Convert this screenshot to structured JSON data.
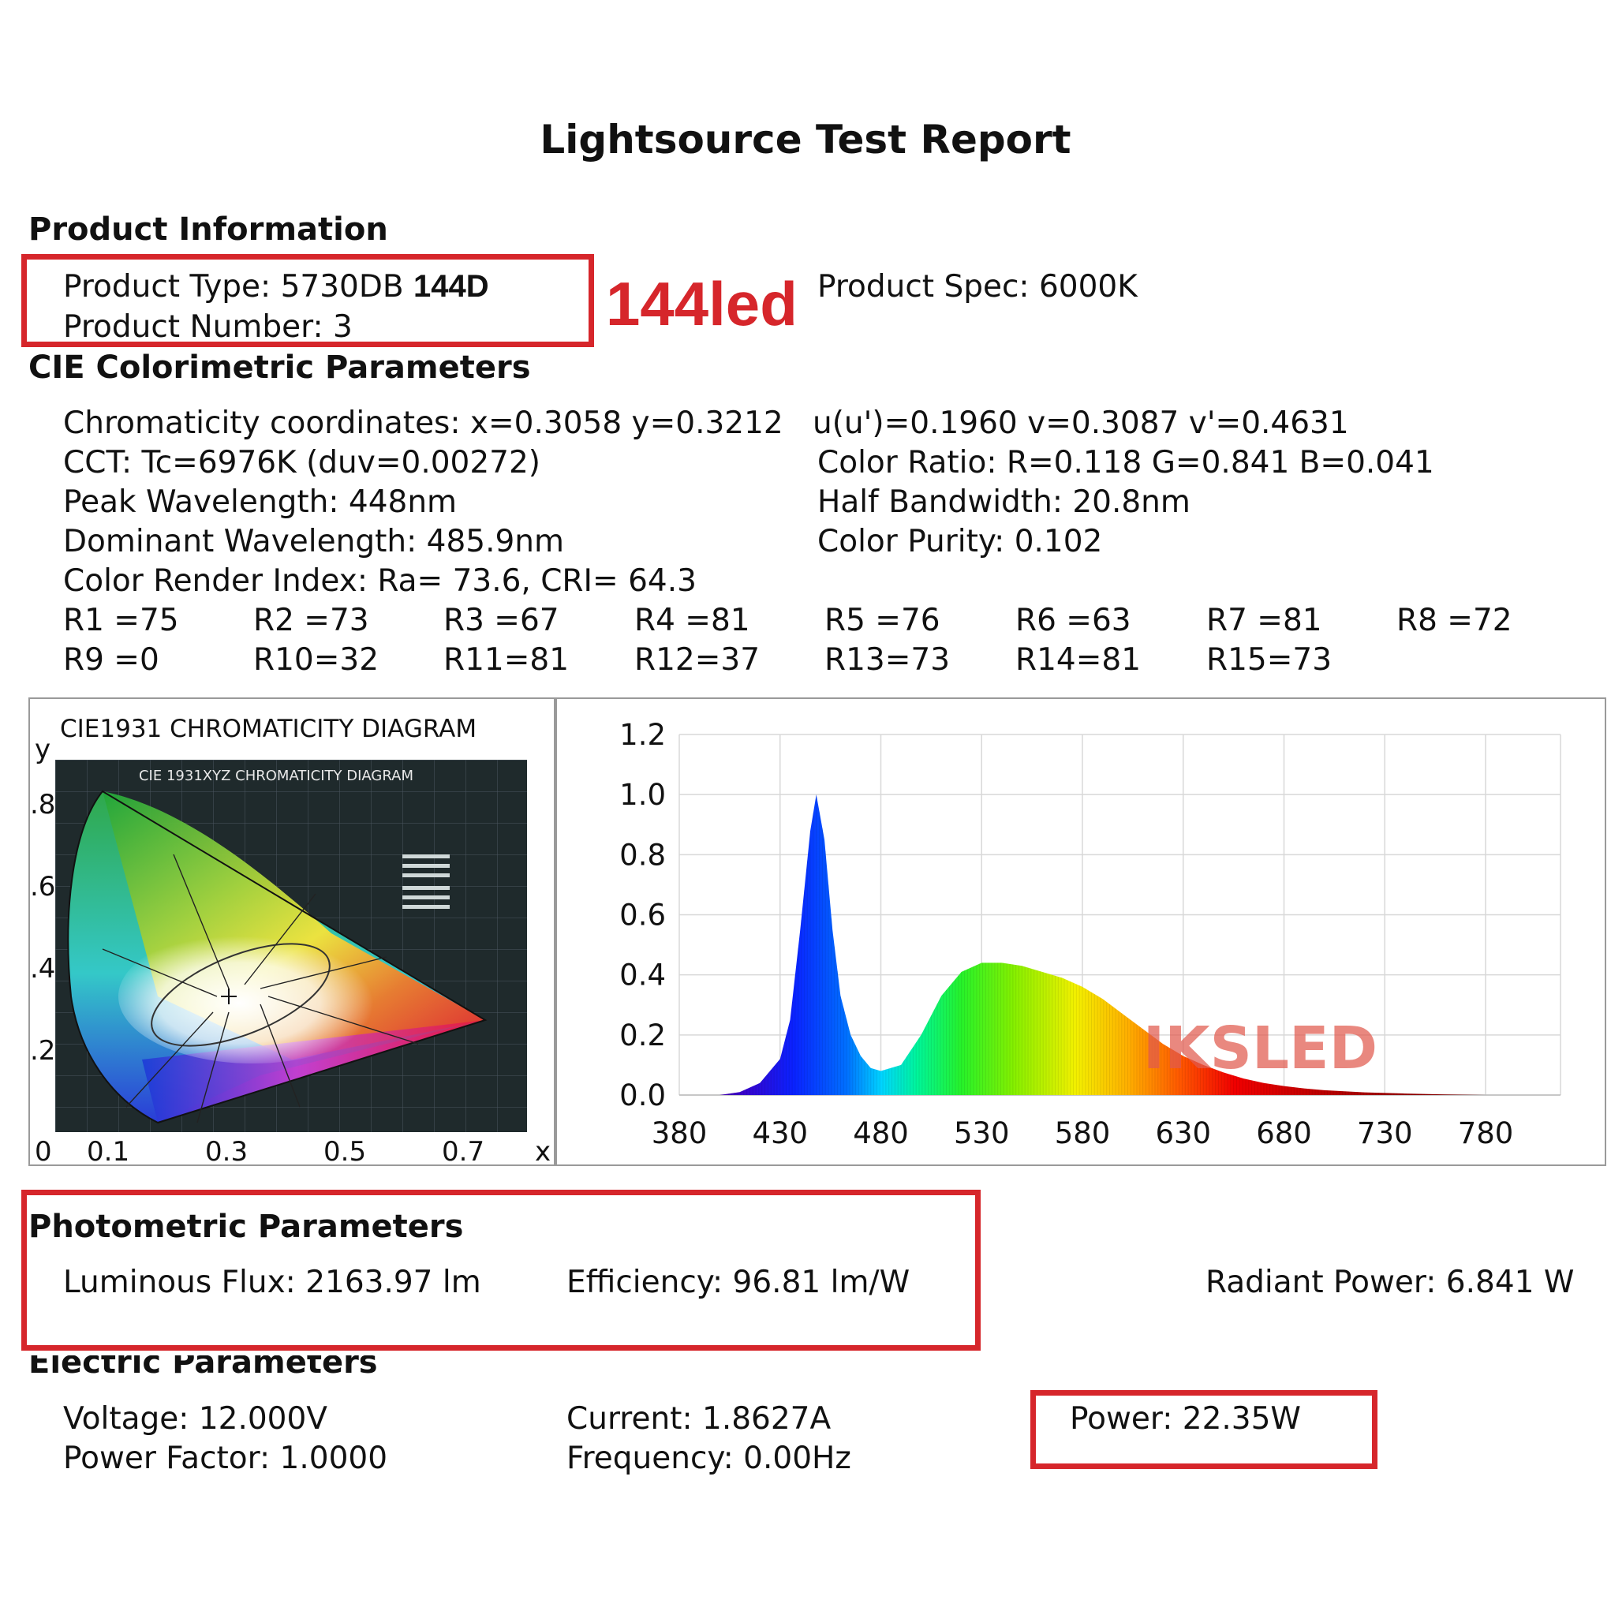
{
  "title": "Lightsource Test Report",
  "product_info": {
    "heading": "Product Information",
    "type_label": "Product Type: 5730DB",
    "type_suffix": "144D",
    "number": "Product Number: 3",
    "spec": "Product Spec: 6000K",
    "annotation": "144led"
  },
  "cie_params": {
    "heading": "CIE Colorimetric Parameters",
    "left": [
      "Chromaticity coordinates: x=0.3058 y=0.3212",
      "CCT: Tc=6976K (duv=0.00272)",
      "Peak Wavelength: 448nm",
      "Dominant Wavelength: 485.9nm",
      "Color Render Index: Ra= 73.6, CRI= 64.3"
    ],
    "right": [
      "u(u')=0.1960 v=0.3087 v'=0.4631",
      "Color Ratio: R=0.118  G=0.841  B=0.041",
      "Half Bandwidth: 20.8nm",
      "Color Purity: 0.102"
    ],
    "r_values": [
      "R1 =75",
      "R2 =73",
      "R3 =67",
      "R4 =81",
      "R5 =76",
      "R6 =63",
      "R7 =81",
      "R8 =72",
      "R9 =0",
      "R10=32",
      "R11=81",
      "R12=37",
      "R13=73",
      "R14=81",
      "R15=73"
    ]
  },
  "cie_diagram": {
    "title": "CIE1931 CHROMATICITY DIAGRAM",
    "inner_title": "CIE 1931XYZ CHROMATICITY DIAGRAM",
    "y_axis_label": "y",
    "x_axis_label": "x",
    "y_ticks": [
      ".8",
      ".6",
      ".4",
      ".2"
    ],
    "x_ticks": [
      "0",
      "0.1",
      "0.3",
      "0.5",
      "0.7"
    ]
  },
  "chart_data": {
    "type": "area",
    "title": "",
    "xlabel": "",
    "ylabel": "",
    "xlim": [
      380,
      800
    ],
    "ylim": [
      0,
      1.2
    ],
    "x_ticks": [
      "380",
      "430",
      "480",
      "530",
      "580",
      "630",
      "680",
      "730",
      "780"
    ],
    "y_ticks": [
      "0.0",
      "0.2",
      "0.4",
      "0.6",
      "0.8",
      "1.0",
      "1.2"
    ],
    "grid": true,
    "watermark": "IKSLED",
    "x": [
      400,
      410,
      420,
      430,
      435,
      440,
      445,
      448,
      452,
      456,
      460,
      465,
      470,
      475,
      480,
      490,
      500,
      510,
      520,
      530,
      540,
      550,
      560,
      570,
      580,
      590,
      600,
      610,
      620,
      630,
      640,
      650,
      660,
      670,
      680,
      690,
      700,
      720,
      740,
      760,
      780
    ],
    "values": [
      0.0,
      0.01,
      0.04,
      0.12,
      0.25,
      0.55,
      0.88,
      1.0,
      0.85,
      0.55,
      0.33,
      0.2,
      0.13,
      0.09,
      0.08,
      0.1,
      0.2,
      0.33,
      0.41,
      0.44,
      0.44,
      0.43,
      0.41,
      0.39,
      0.36,
      0.32,
      0.27,
      0.22,
      0.17,
      0.13,
      0.1,
      0.075,
      0.055,
      0.04,
      0.03,
      0.022,
      0.016,
      0.009,
      0.005,
      0.002,
      0.0
    ]
  },
  "photometric": {
    "heading": "Photometric Parameters",
    "flux": "Luminous Flux: 2163.97 lm",
    "efficiency": "Efficiency: 96.81 lm/W",
    "radiant": "Radiant Power: 6.841 W"
  },
  "electric": {
    "heading": "Electric Parameters",
    "voltage": "Voltage: 12.000V",
    "current": "Current: 1.8627A",
    "power": "Power: 22.35W",
    "power_factor": "Power Factor: 1.0000",
    "frequency": "Frequency: 0.00Hz"
  },
  "colors": {
    "annotation_red": "#d6262b"
  }
}
